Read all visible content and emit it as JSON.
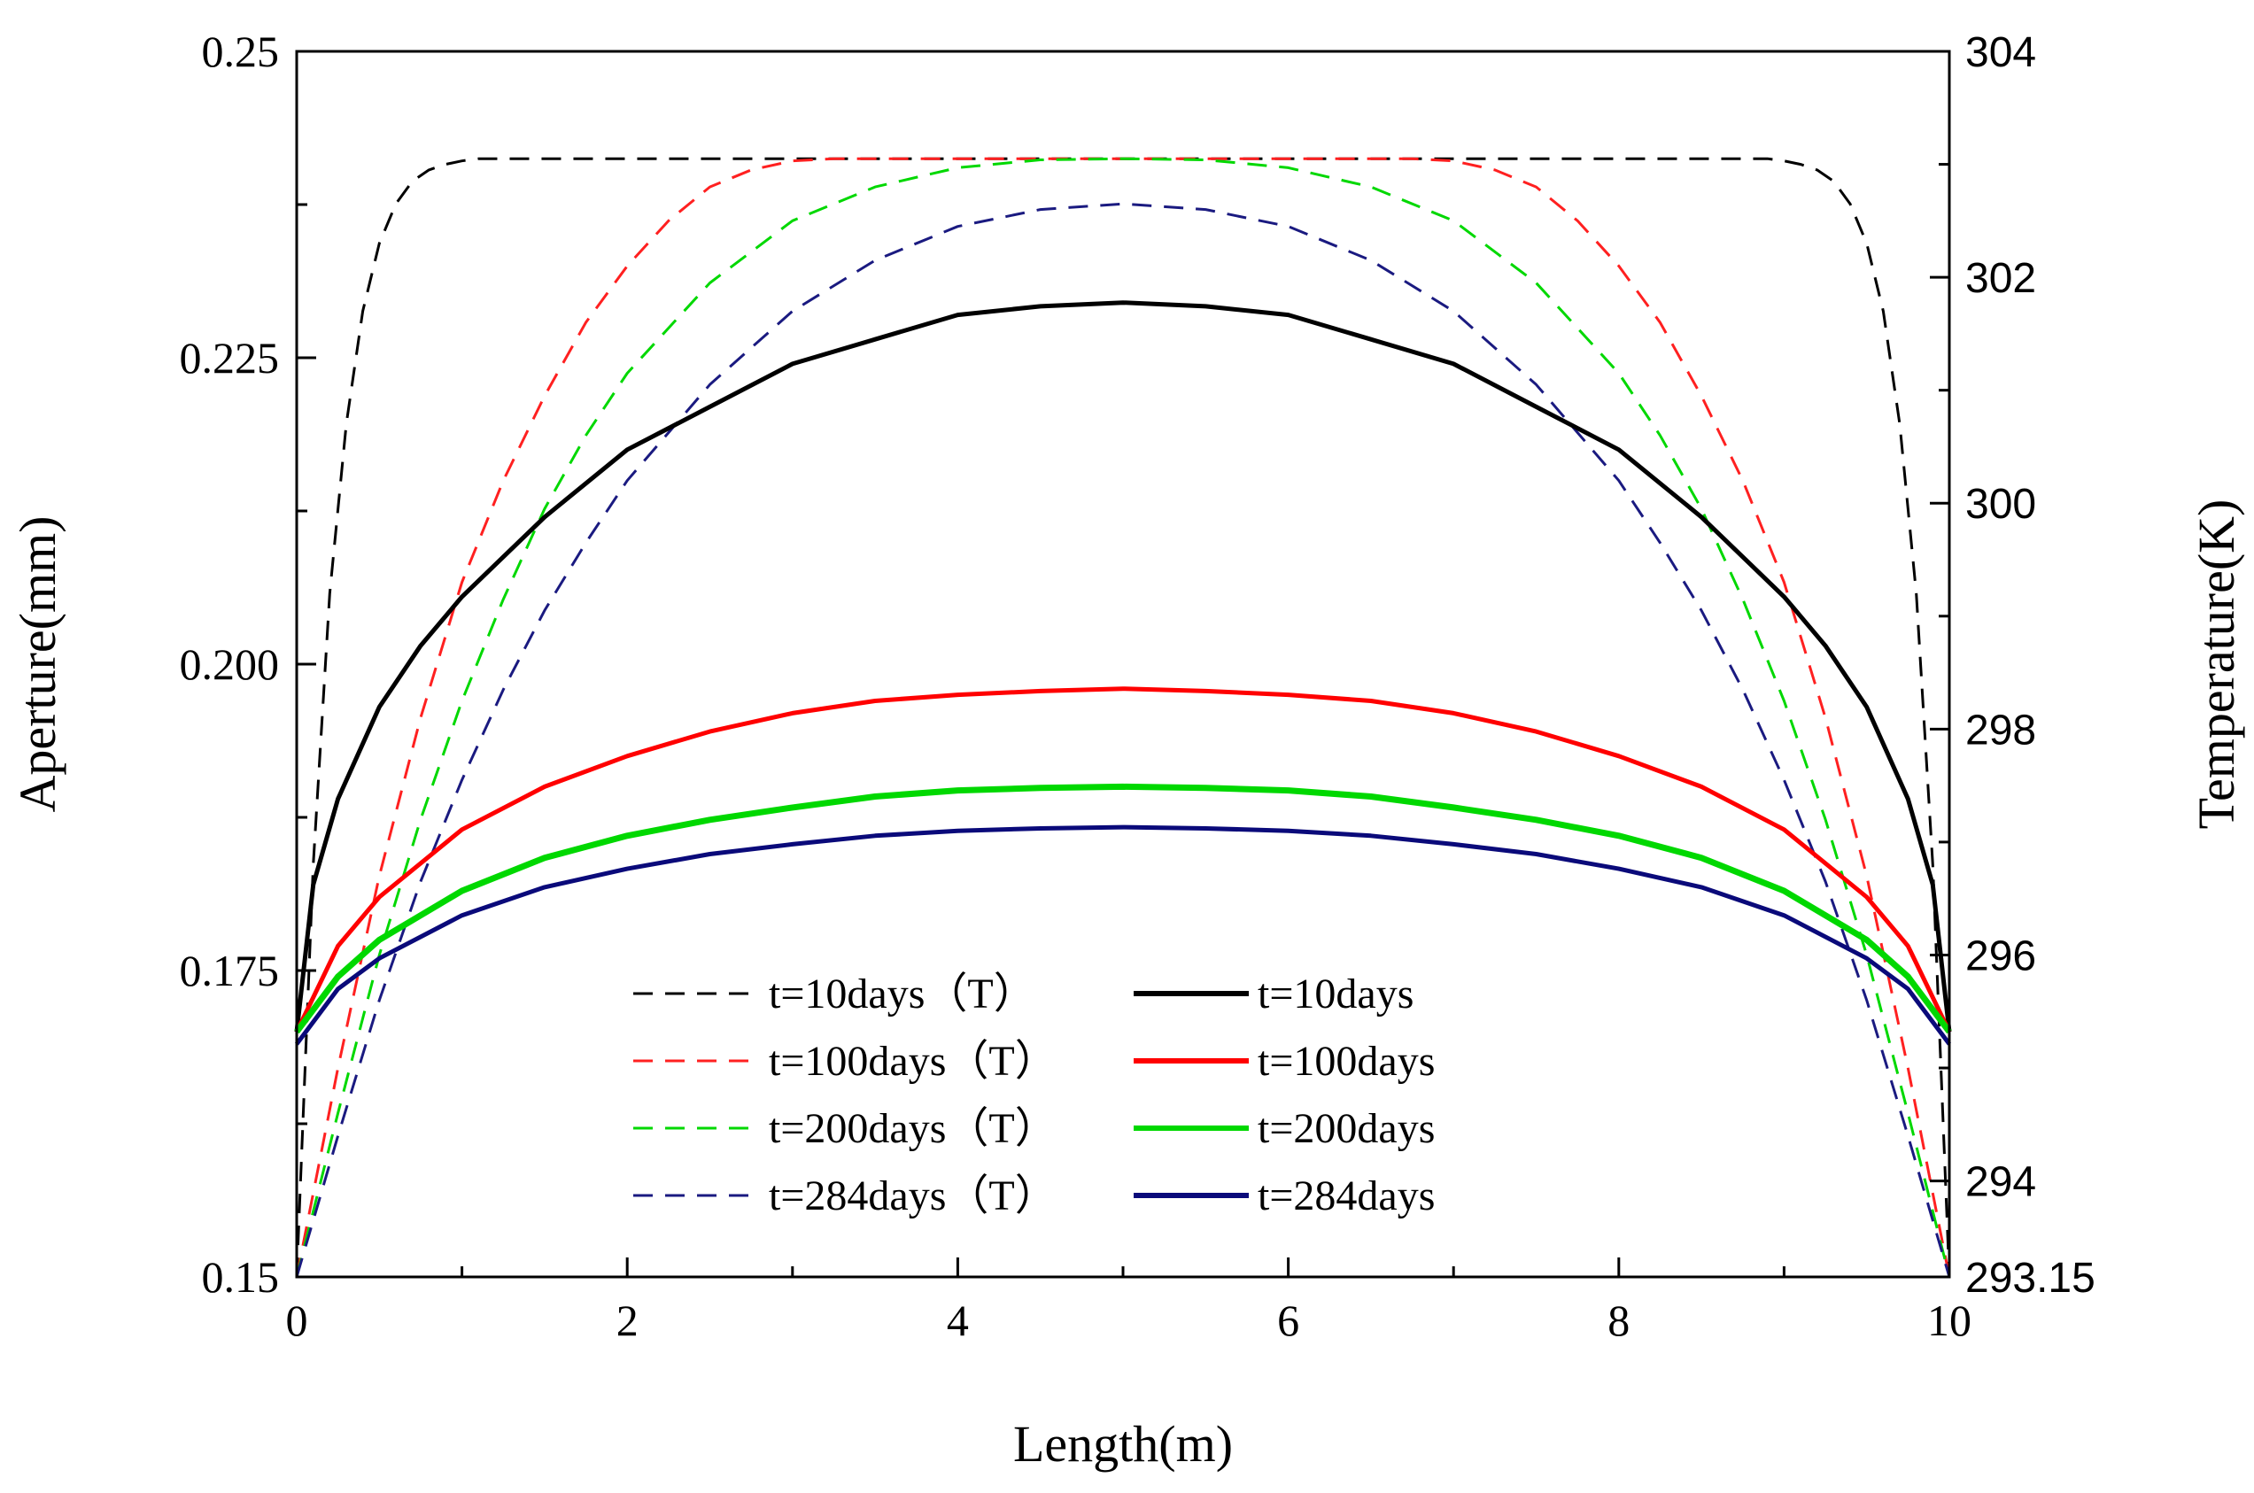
{
  "chart_data": {
    "type": "line",
    "xlabel": "Length(m)",
    "ylabel_left": "Aperture(mm)",
    "ylabel_right": "Temperature(K)",
    "xlim": [
      0,
      10
    ],
    "ylim_left": [
      0.15,
      0.25
    ],
    "ylim_right": [
      293.15,
      304
    ],
    "x_ticks": [
      "0",
      "2",
      "4",
      "6",
      "8",
      "10"
    ],
    "x_tick_values": [
      0,
      2,
      4,
      6,
      8,
      10
    ],
    "y_left_ticks": [
      "0.15",
      "0.175",
      "0.200",
      "0.225",
      "0.25"
    ],
    "y_left_tick_values": [
      0.15,
      0.175,
      0.2,
      0.225,
      0.25
    ],
    "y_right_ticks": [
      "293.15",
      "294",
      "296",
      "298",
      "300",
      "302",
      "304"
    ],
    "y_right_tick_values": [
      293.15,
      294,
      296,
      298,
      300,
      302,
      304
    ],
    "legend_position": "lower-center",
    "series": [
      {
        "name": "t=10days（T）",
        "style": "dashed",
        "axis": "right",
        "color": "#000000",
        "x": [
          0,
          0.1,
          0.2,
          0.3,
          0.4,
          0.5,
          0.6,
          0.7,
          0.8,
          0.9,
          1.0,
          1.1,
          5.0,
          8.9,
          9.0,
          9.1,
          9.2,
          9.3,
          9.4,
          9.5,
          9.6,
          9.7,
          9.8,
          9.9,
          10.0
        ],
        "y": [
          293.15,
          296.8,
          299.2,
          300.7,
          301.7,
          302.3,
          302.65,
          302.85,
          302.95,
          303.0,
          303.03,
          303.05,
          303.05,
          303.05,
          303.03,
          303.0,
          302.95,
          302.85,
          302.65,
          302.3,
          301.7,
          300.7,
          299.2,
          296.8,
          293.15
        ]
      },
      {
        "name": "t=100days（T）",
        "style": "dashed",
        "axis": "right",
        "color": "#ff2020",
        "x": [
          0,
          0.25,
          0.5,
          0.75,
          1.0,
          1.25,
          1.5,
          1.75,
          2.0,
          2.25,
          2.5,
          2.75,
          3.0,
          3.25,
          5.0,
          6.75,
          7.0,
          7.25,
          7.5,
          7.75,
          8.0,
          8.25,
          8.5,
          8.75,
          9.0,
          9.25,
          9.5,
          9.75,
          10.0
        ],
        "y": [
          293.15,
          295.0,
          296.7,
          298.1,
          299.3,
          300.2,
          300.95,
          301.6,
          302.1,
          302.5,
          302.8,
          302.95,
          303.03,
          303.05,
          303.05,
          303.05,
          303.03,
          302.95,
          302.8,
          302.5,
          302.1,
          301.6,
          300.95,
          300.2,
          299.3,
          298.1,
          296.7,
          295.0,
          293.15
        ]
      },
      {
        "name": "t=200days（T）",
        "style": "dashed",
        "axis": "right",
        "color": "#00d800",
        "x": [
          0,
          0.25,
          0.5,
          0.75,
          1.0,
          1.25,
          1.5,
          1.75,
          2.0,
          2.5,
          3.0,
          3.5,
          4.0,
          4.5,
          5.0,
          5.5,
          6.0,
          6.5,
          7.0,
          7.5,
          8.0,
          8.25,
          8.5,
          8.75,
          9.0,
          9.25,
          9.5,
          9.75,
          10.0
        ],
        "y": [
          293.15,
          294.6,
          296.0,
          297.2,
          298.25,
          299.15,
          299.95,
          300.6,
          301.15,
          301.95,
          302.5,
          302.8,
          302.97,
          303.04,
          303.05,
          303.04,
          302.97,
          302.8,
          302.5,
          301.95,
          301.15,
          300.6,
          299.95,
          299.15,
          298.25,
          297.2,
          296.0,
          294.6,
          293.15
        ]
      },
      {
        "name": "t=284days（T）",
        "style": "dashed",
        "axis": "right",
        "color": "#1a1a80",
        "x": [
          0,
          0.25,
          0.5,
          0.75,
          1.0,
          1.25,
          1.5,
          1.75,
          2.0,
          2.5,
          3.0,
          3.5,
          4.0,
          4.5,
          5.0,
          5.5,
          6.0,
          6.5,
          7.0,
          7.5,
          8.0,
          8.25,
          8.5,
          8.75,
          9.0,
          9.25,
          9.5,
          9.75,
          10.0
        ],
        "y": [
          293.15,
          294.4,
          295.6,
          296.65,
          297.55,
          298.35,
          299.05,
          299.65,
          300.2,
          301.05,
          301.7,
          302.15,
          302.45,
          302.6,
          302.65,
          302.6,
          302.45,
          302.15,
          301.7,
          301.05,
          300.2,
          299.65,
          299.05,
          298.35,
          297.55,
          296.65,
          295.6,
          294.4,
          293.15
        ]
      },
      {
        "name": "t=10days",
        "style": "solid",
        "axis": "left",
        "color": "#000000",
        "x": [
          0,
          0.1,
          0.25,
          0.5,
          0.75,
          1.0,
          1.5,
          2.0,
          2.5,
          3.0,
          3.5,
          4.0,
          4.5,
          5.0,
          5.5,
          6.0,
          6.5,
          7.0,
          7.5,
          8.0,
          8.5,
          9.0,
          9.25,
          9.5,
          9.75,
          9.9,
          10.0
        ],
        "y": [
          0.17,
          0.182,
          0.189,
          0.1965,
          0.2015,
          0.2055,
          0.212,
          0.2175,
          0.221,
          0.2245,
          0.2265,
          0.2285,
          0.2292,
          0.2295,
          0.2292,
          0.2285,
          0.2265,
          0.2245,
          0.221,
          0.2175,
          0.212,
          0.2055,
          0.2015,
          0.1965,
          0.189,
          0.182,
          0.17
        ]
      },
      {
        "name": "t=100days",
        "style": "solid",
        "axis": "left",
        "color": "#ff0000",
        "x": [
          0,
          0.25,
          0.5,
          1.0,
          1.5,
          2.0,
          2.5,
          3.0,
          3.5,
          4.0,
          4.5,
          5.0,
          5.5,
          6.0,
          6.5,
          7.0,
          7.5,
          8.0,
          8.5,
          9.0,
          9.5,
          9.75,
          10.0
        ],
        "y": [
          0.17,
          0.177,
          0.181,
          0.1865,
          0.19,
          0.1925,
          0.1945,
          0.196,
          0.197,
          0.1975,
          0.1978,
          0.198,
          0.1978,
          0.1975,
          0.197,
          0.196,
          0.1945,
          0.1925,
          0.19,
          0.1865,
          0.181,
          0.177,
          0.17
        ]
      },
      {
        "name": "t=200days",
        "style": "solid",
        "axis": "left",
        "color": "#00d800",
        "x": [
          0,
          0.25,
          0.5,
          1.0,
          1.5,
          2.0,
          2.5,
          3.0,
          3.5,
          4.0,
          4.5,
          5.0,
          5.5,
          6.0,
          6.5,
          7.0,
          7.5,
          8.0,
          8.5,
          9.0,
          9.5,
          9.75,
          10.0
        ],
        "y": [
          0.17,
          0.1745,
          0.1775,
          0.1815,
          0.1842,
          0.186,
          0.1873,
          0.1883,
          0.1892,
          0.1897,
          0.1899,
          0.19,
          0.1899,
          0.1897,
          0.1892,
          0.1883,
          0.1873,
          0.186,
          0.1842,
          0.1815,
          0.1775,
          0.1745,
          0.17
        ]
      },
      {
        "name": "t=284days",
        "style": "solid",
        "axis": "left",
        "color": "#0a0a7a",
        "x": [
          0,
          0.25,
          0.5,
          1.0,
          1.5,
          2.0,
          2.5,
          3.0,
          3.5,
          4.0,
          4.5,
          5.0,
          5.5,
          6.0,
          6.5,
          7.0,
          7.5,
          8.0,
          8.5,
          9.0,
          9.5,
          9.75,
          10.0
        ],
        "y": [
          0.169,
          0.1735,
          0.176,
          0.1795,
          0.1818,
          0.1833,
          0.1845,
          0.1853,
          0.186,
          0.1864,
          0.1866,
          0.1867,
          0.1866,
          0.1864,
          0.186,
          0.1853,
          0.1845,
          0.1833,
          0.1818,
          0.1795,
          0.176,
          0.1735,
          0.169
        ]
      }
    ]
  }
}
